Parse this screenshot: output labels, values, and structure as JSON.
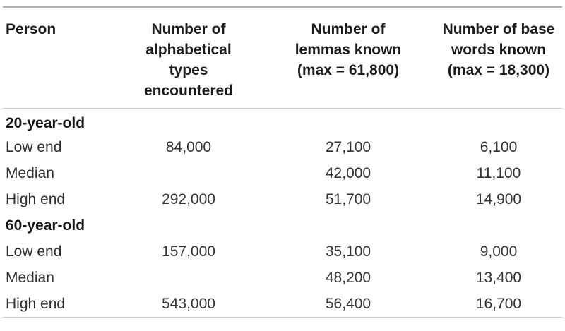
{
  "table": {
    "columns": [
      {
        "label": "Person"
      },
      {
        "label": "Number of\nalphabetical\ntypes\nencountered"
      },
      {
        "label": "Number of\nlemmas known\n(max = 61,800)"
      },
      {
        "label": "Number of base\nwords known\n(max = 18,300)"
      }
    ],
    "rows": [
      {
        "type": "group",
        "label": "20-year-old",
        "c2": "",
        "c3": "",
        "c4": ""
      },
      {
        "type": "data",
        "label": "Low end",
        "c2": "84,000",
        "c3": "27,100",
        "c4": "6,100"
      },
      {
        "type": "data",
        "label": "Median",
        "c2": "",
        "c3": "42,000",
        "c4": "11,100"
      },
      {
        "type": "data",
        "label": "High end",
        "c2": "292,000",
        "c3": "51,700",
        "c4": "14,900"
      },
      {
        "type": "group",
        "label": "60-year-old",
        "c2": "",
        "c3": "",
        "c4": ""
      },
      {
        "type": "data",
        "label": "Low end",
        "c2": "157,000",
        "c3": "35,100",
        "c4": "9,000"
      },
      {
        "type": "data",
        "label": "Median",
        "c2": "",
        "c3": "48,200",
        "c4": "13,400"
      },
      {
        "type": "data",
        "label": "High end",
        "c2": "543,000",
        "c3": "56,400",
        "c4": "16,700"
      }
    ]
  },
  "chart_data": {
    "type": "table",
    "columns": [
      "Person",
      "Number of alphabetical types encountered",
      "Number of lemmas known (max = 61,800)",
      "Number of base words known (max = 18,300)"
    ],
    "rows": [
      [
        "20-year-old",
        "",
        "",
        ""
      ],
      [
        "Low end",
        "84,000",
        "27,100",
        "6,100"
      ],
      [
        "Median",
        "",
        "42,000",
        "11,100"
      ],
      [
        "High end",
        "292,000",
        "51,700",
        "14,900"
      ],
      [
        "60-year-old",
        "",
        "",
        ""
      ],
      [
        "Low end",
        "157,000",
        "35,100",
        "9,000"
      ],
      [
        "Median",
        "",
        "48,200",
        "13,400"
      ],
      [
        "High end",
        "543,000",
        "56,400",
        "16,700"
      ]
    ],
    "notes": {
      "max_lemmas": "61,800",
      "max_base_words": "18,300"
    }
  },
  "colors": {
    "rule_top": "#aeaeae",
    "rule_inner": "#c9c9c9",
    "header_text": "#1c1c1c",
    "body_text": "#333333",
    "background": "#ffffff"
  }
}
